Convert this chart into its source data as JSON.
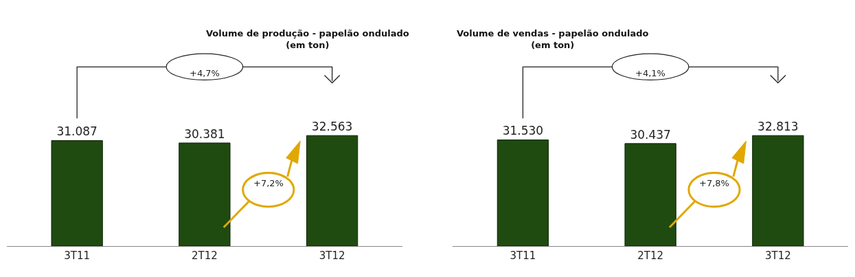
{
  "chart_data": [
    {
      "type": "bar",
      "title": "Volume de produção - papelão ondulado\n(em ton)",
      "categories": [
        "3T11",
        "2T12",
        "3T12"
      ],
      "values": [
        31087,
        30381,
        32563
      ],
      "value_labels": [
        "31.087",
        "30.381",
        "32.563"
      ],
      "color": "#1f4a10",
      "annotations": [
        "+4,7%",
        "+7,2%"
      ]
    },
    {
      "type": "bar",
      "title": "Volume de vendas - papelão ondulado\n(em ton)",
      "categories": [
        "3T11",
        "2T12",
        "3T12"
      ],
      "values": [
        31530,
        30437,
        32813
      ],
      "value_labels": [
        "31.530",
        "30.437",
        "32.813"
      ],
      "color": "#1f4a10",
      "annotations": [
        "+4,1%",
        "+7,8%"
      ]
    }
  ]
}
